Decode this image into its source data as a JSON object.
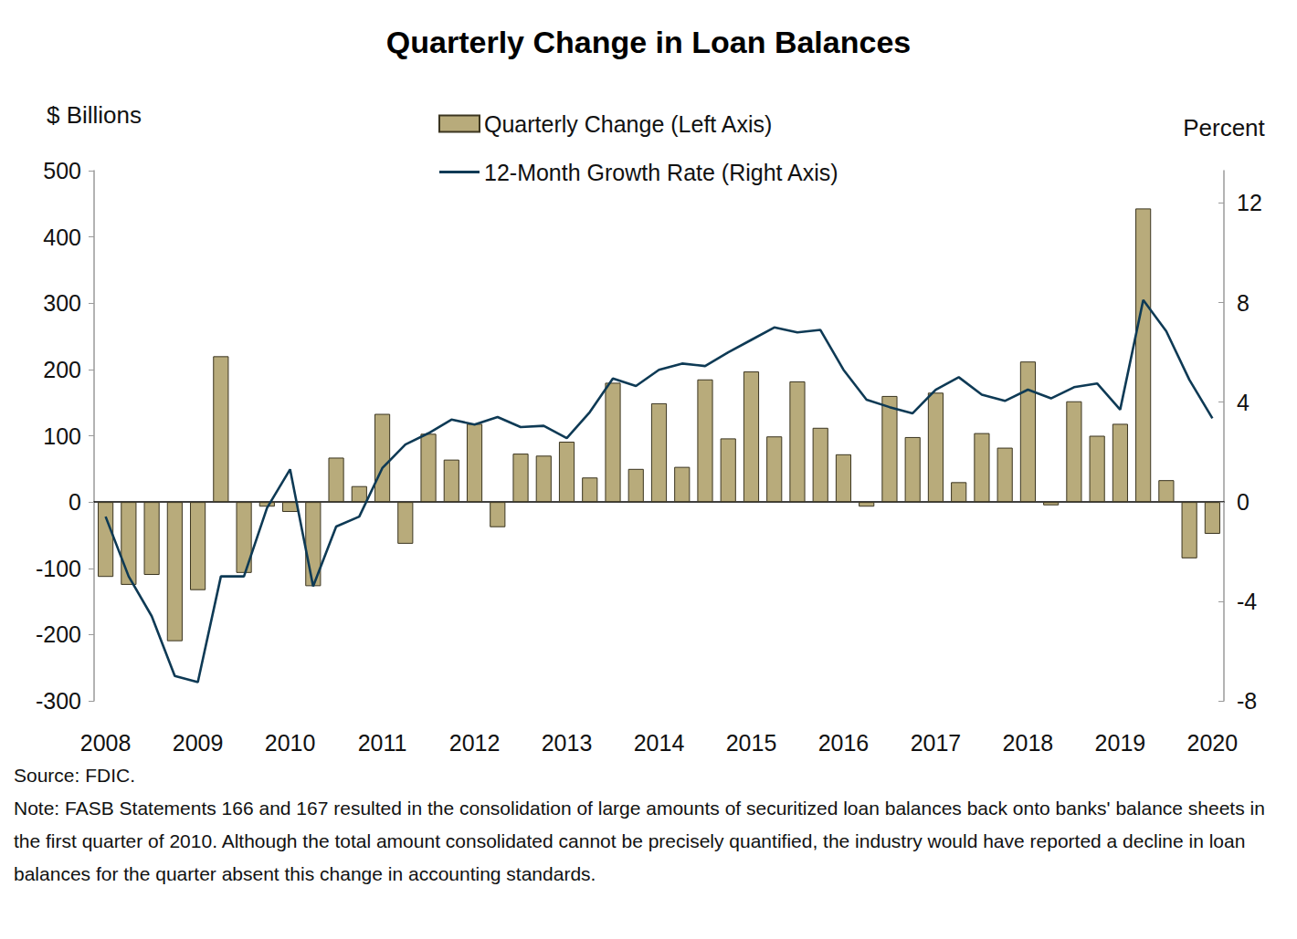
{
  "chart_data": {
    "type": "bar",
    "title": "Quarterly Change in Loan Balances",
    "source": "Source: FDIC.",
    "note": "Note: FASB Statements 166 and 167 resulted in the consolidation of large amounts of securitized loan balances back onto banks' balance sheets in the first quarter of 2010.  Although the total amount consolidated cannot be precisely quantified, the industry would have reported a decline in loan balances for the quarter absent this change in accounting standards.",
    "y_label": "$ Billions",
    "y2_label": "Percent",
    "categories": [
      "2008",
      null,
      null,
      null,
      "2009",
      null,
      null,
      null,
      "2010",
      null,
      null,
      null,
      "2011",
      null,
      null,
      null,
      "2012",
      null,
      null,
      null,
      "2013",
      null,
      null,
      null,
      "2014",
      null,
      null,
      null,
      "2015",
      null,
      null,
      null,
      "2016",
      null,
      null,
      null,
      "2017",
      null,
      null,
      null,
      "2018",
      null,
      null,
      null,
      "2019",
      null,
      null,
      null,
      "2020"
    ],
    "ylim": [
      -300,
      500
    ],
    "yticks": [
      -300,
      -200,
      -100,
      0,
      100,
      200,
      300,
      400,
      500
    ],
    "y2lim": [
      -8,
      13.3
    ],
    "y2ticks": [
      -8,
      -4,
      0,
      4,
      8,
      12
    ],
    "grid": false,
    "legend": "top",
    "series": [
      {
        "name": "Quarterly Change (Left Axis)",
        "type": "bar",
        "color": "#b8ab7b",
        "values": [
          -113,
          -125,
          -110,
          -210,
          -133,
          220,
          -107,
          -7,
          -15,
          -127,
          67,
          24,
          133,
          -63,
          103,
          64,
          118,
          -38,
          73,
          70,
          91,
          37,
          180,
          50,
          149,
          53,
          185,
          96,
          197,
          99,
          182,
          112,
          72,
          -7,
          160,
          98,
          165,
          30,
          104,
          82,
          212,
          -5,
          152,
          100,
          118,
          443,
          33,
          -85,
          -48
        ]
      },
      {
        "name": "12-Month Growth Rate (Right Axis)",
        "type": "line",
        "color": "#0e3a55",
        "axis": "y2",
        "values": [
          -0.6,
          -3.0,
          -4.6,
          -7.0,
          -7.25,
          -3.0,
          -3.0,
          -0.25,
          1.3,
          -3.4,
          -1.0,
          -0.6,
          1.35,
          2.3,
          2.75,
          3.3,
          3.1,
          3.4,
          3.0,
          3.05,
          2.55,
          3.6,
          4.95,
          4.65,
          5.3,
          5.55,
          5.45,
          6.0,
          6.5,
          7.0,
          6.8,
          6.9,
          5.3,
          4.1,
          3.8,
          3.55,
          4.5,
          5.0,
          4.3,
          4.05,
          4.5,
          4.15,
          4.6,
          4.75,
          3.7,
          8.1,
          6.85,
          4.9,
          3.35
        ]
      }
    ]
  }
}
